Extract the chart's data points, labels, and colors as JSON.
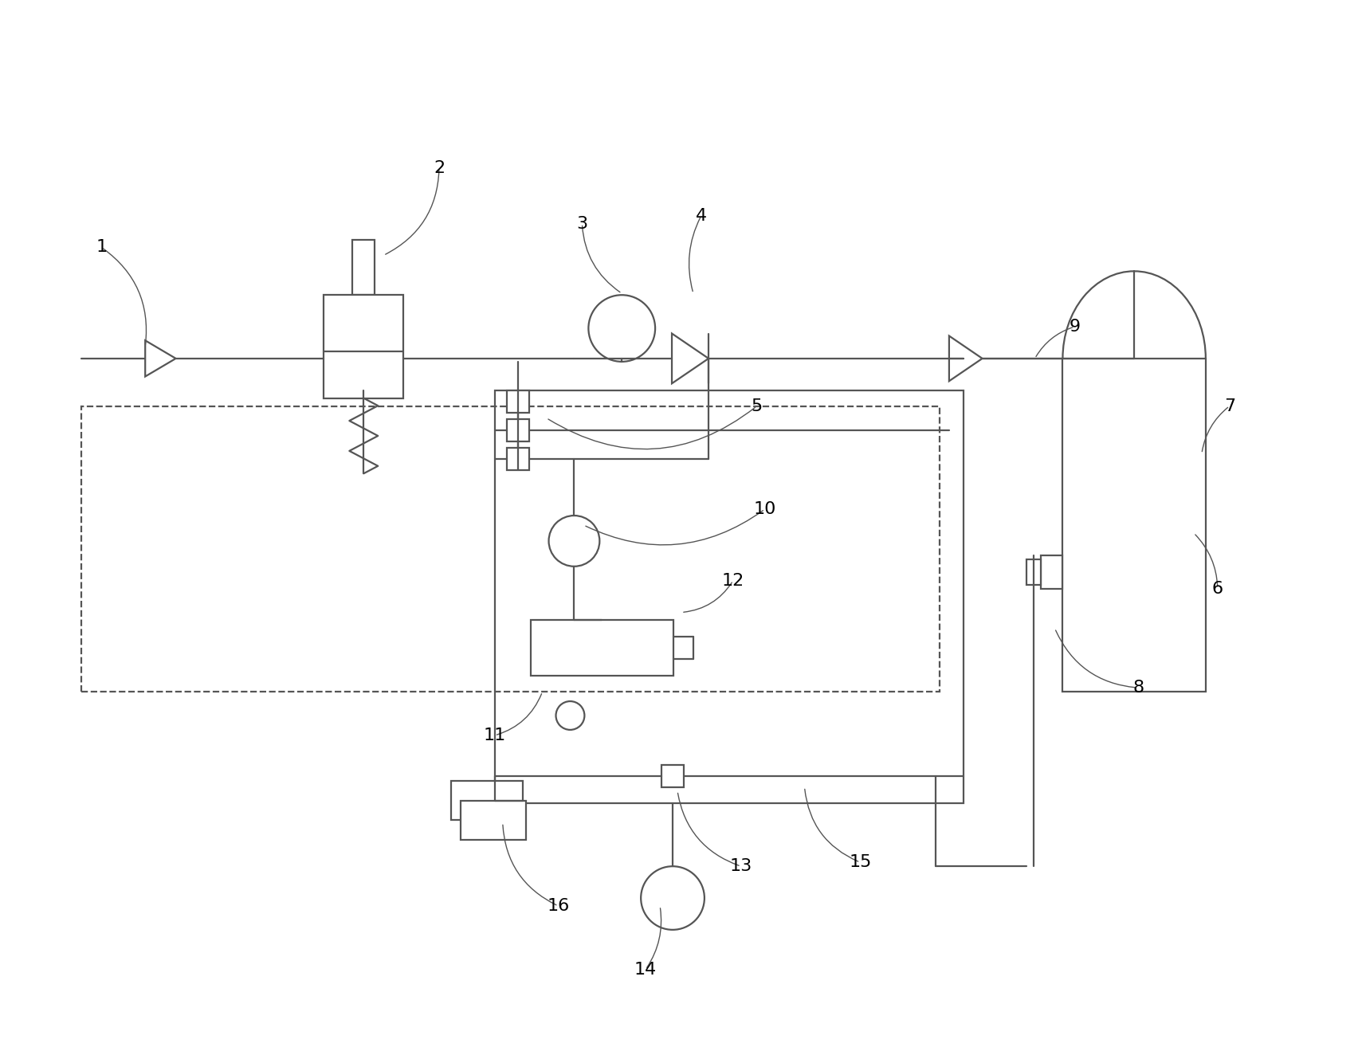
{
  "bg_color": "#ffffff",
  "line_color": "#555555",
  "line_width": 1.6,
  "fig_width": 17.09,
  "fig_height": 13.19,
  "dpi": 100
}
